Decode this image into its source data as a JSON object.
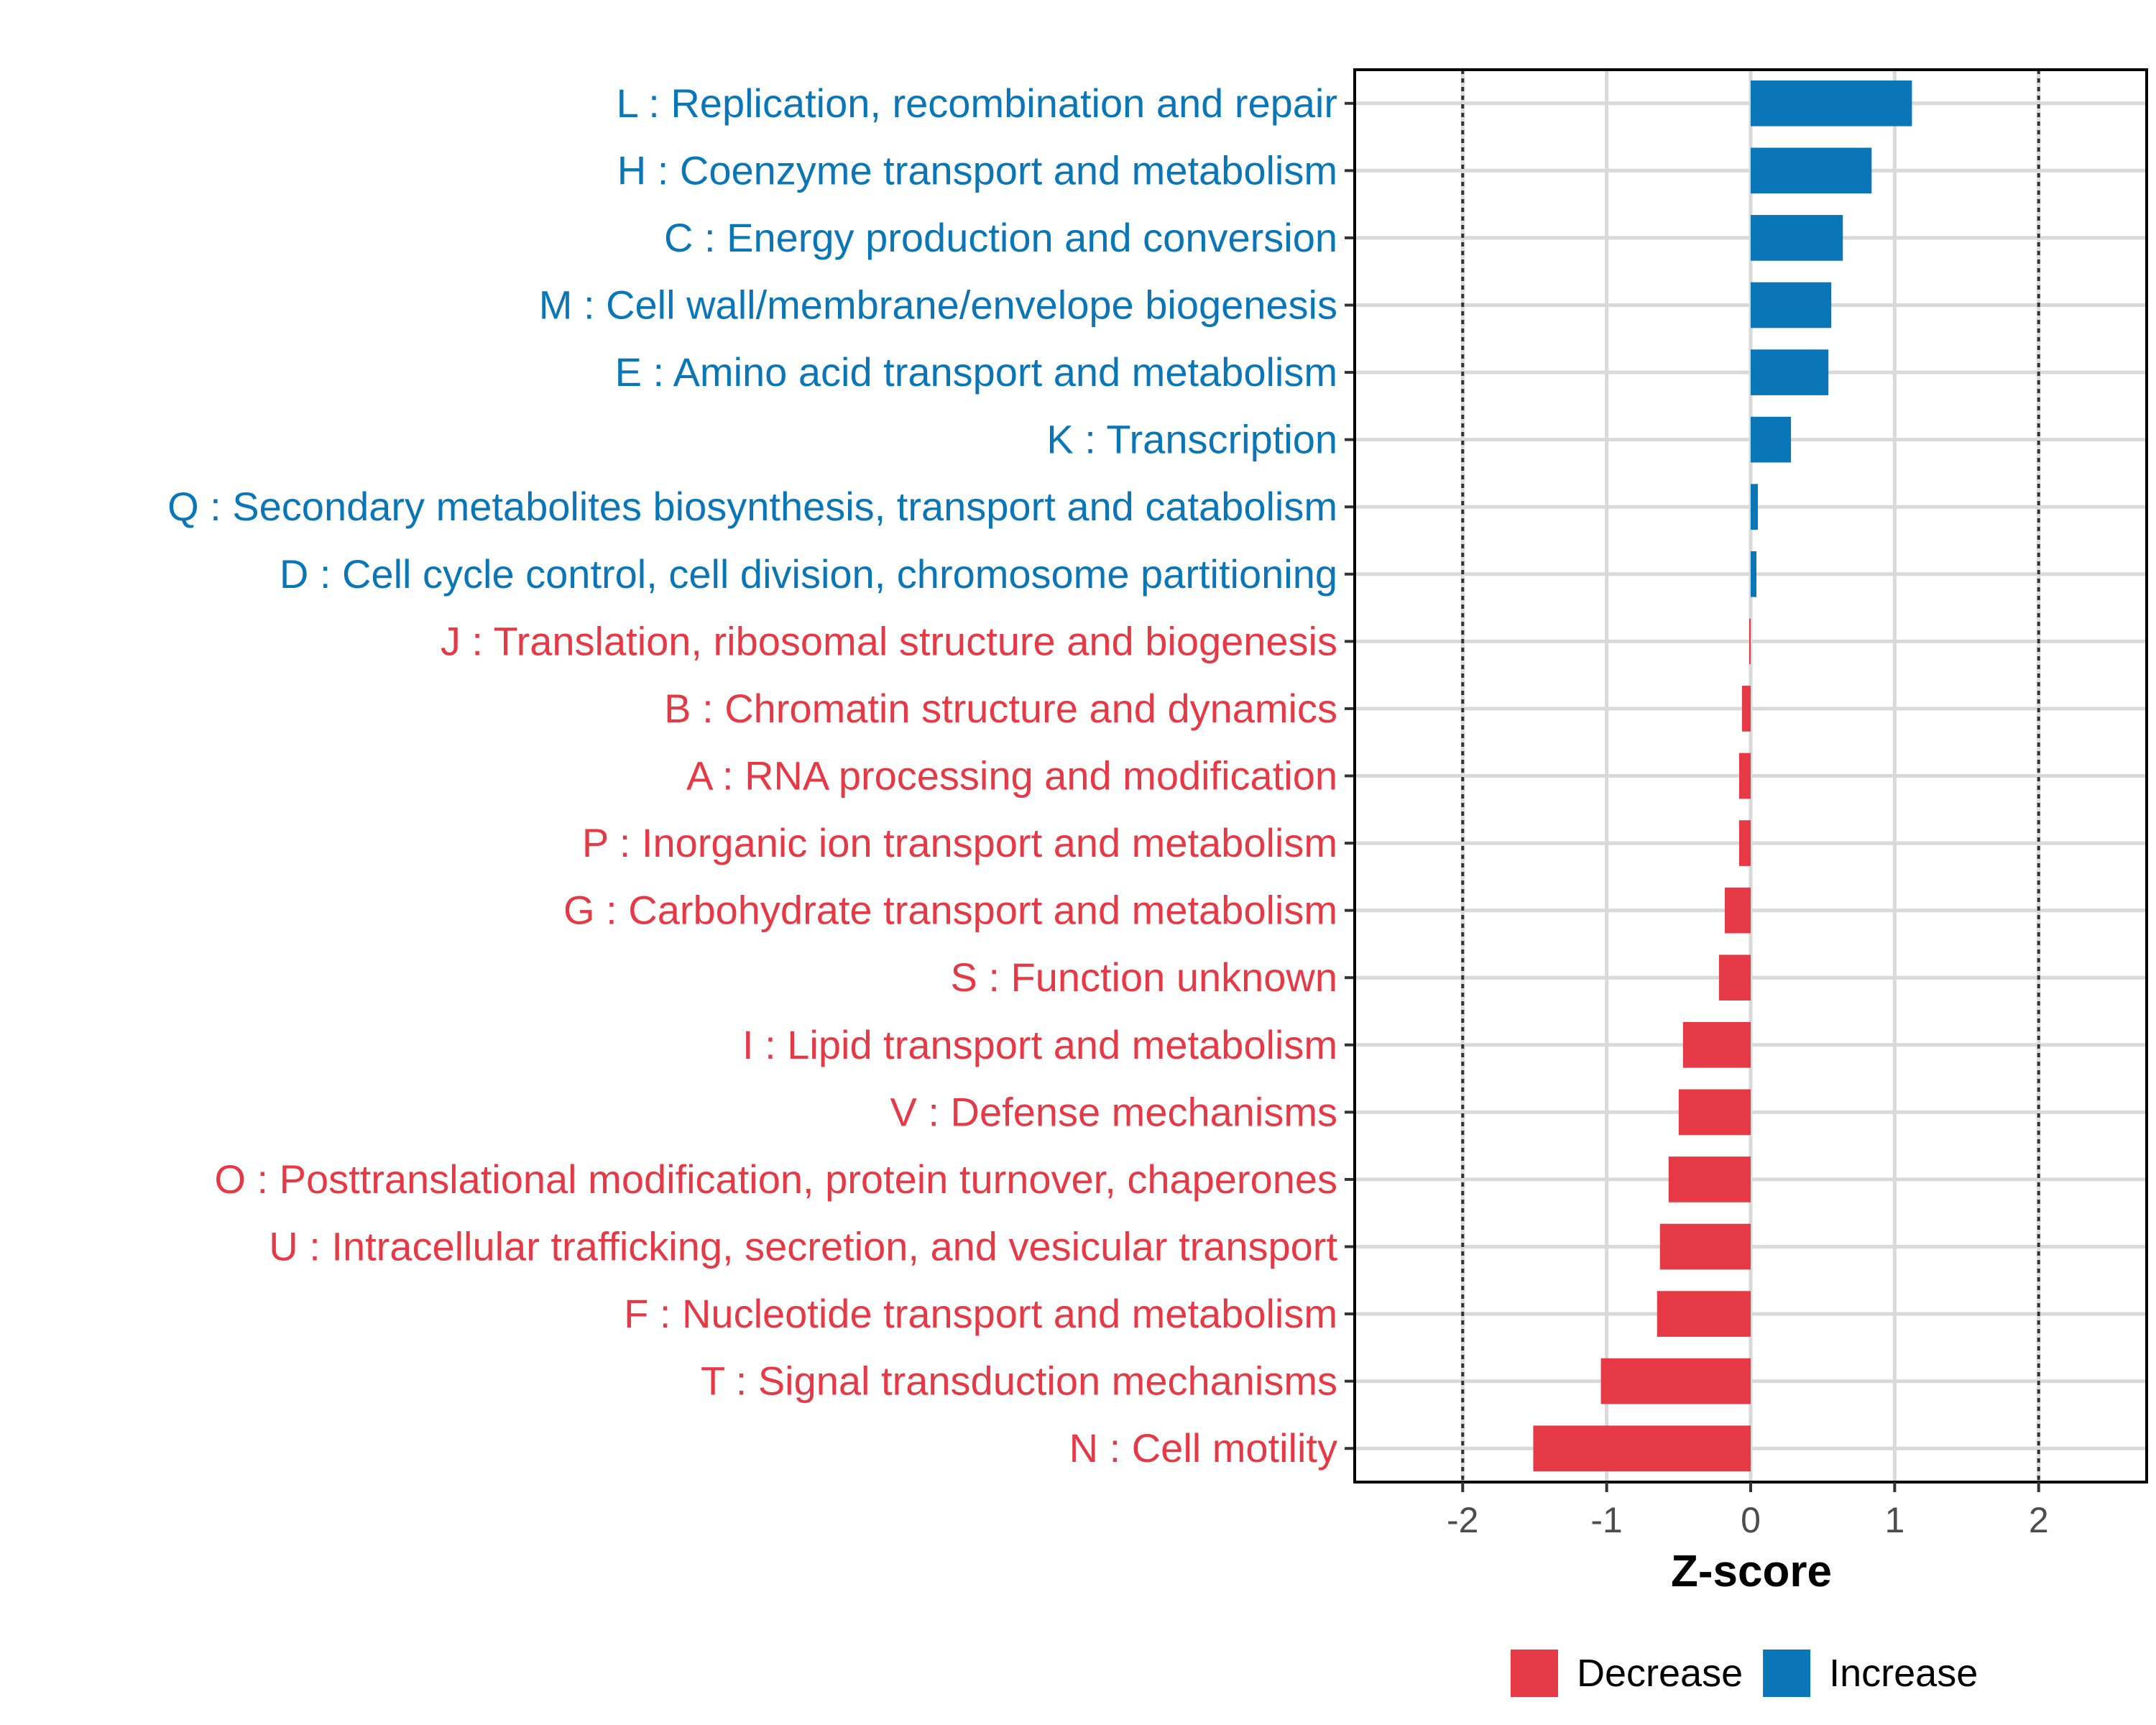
{
  "chart_data": {
    "type": "bar",
    "orientation": "horizontal",
    "xlabel": "Z-score",
    "xlim": [
      -2.75,
      2.75
    ],
    "xticks": [
      -2,
      -1,
      0,
      1,
      2
    ],
    "xtick_labels": [
      "-2",
      "-1",
      "0",
      "1",
      "2"
    ],
    "reference_lines": [
      -2,
      2
    ],
    "legend_position": "bottom",
    "colors": {
      "Decrease": "#e63946",
      "Increase": "#0a76b7"
    },
    "legend": [
      {
        "label": "Decrease",
        "color": "#e63946"
      },
      {
        "label": "Increase",
        "color": "#0a76b7"
      }
    ],
    "categories": [
      "L : Replication, recombination and repair",
      "H : Coenzyme transport and metabolism",
      "C : Energy production and conversion",
      "M : Cell wall/membrane/envelope biogenesis",
      "E : Amino acid transport and metabolism",
      "K : Transcription",
      "Q : Secondary metabolites biosynthesis, transport and catabolism",
      "D : Cell cycle control, cell division, chromosome partitioning",
      "J : Translation, ribosomal structure and biogenesis",
      "B : Chromatin structure and dynamics",
      "A : RNA processing and modification",
      "P : Inorganic ion transport and metabolism",
      "G : Carbohydrate transport and metabolism",
      "S : Function unknown",
      "I : Lipid transport and metabolism",
      "V : Defense mechanisms",
      "O : Posttranslational modification, protein turnover, chaperones",
      "U : Intracellular trafficking, secretion, and vesicular transport",
      "F : Nucleotide transport and metabolism",
      "T : Signal transduction mechanisms",
      "N : Cell motility"
    ],
    "values": [
      1.12,
      0.84,
      0.64,
      0.56,
      0.54,
      0.28,
      0.05,
      0.04,
      -0.01,
      -0.06,
      -0.08,
      -0.08,
      -0.18,
      -0.22,
      -0.47,
      -0.5,
      -0.57,
      -0.63,
      -0.65,
      -1.04,
      -1.51
    ],
    "groups": [
      "Increase",
      "Increase",
      "Increase",
      "Increase",
      "Increase",
      "Increase",
      "Increase",
      "Increase",
      "Decrease",
      "Decrease",
      "Decrease",
      "Decrease",
      "Decrease",
      "Decrease",
      "Decrease",
      "Decrease",
      "Decrease",
      "Decrease",
      "Decrease",
      "Decrease",
      "Decrease"
    ]
  }
}
